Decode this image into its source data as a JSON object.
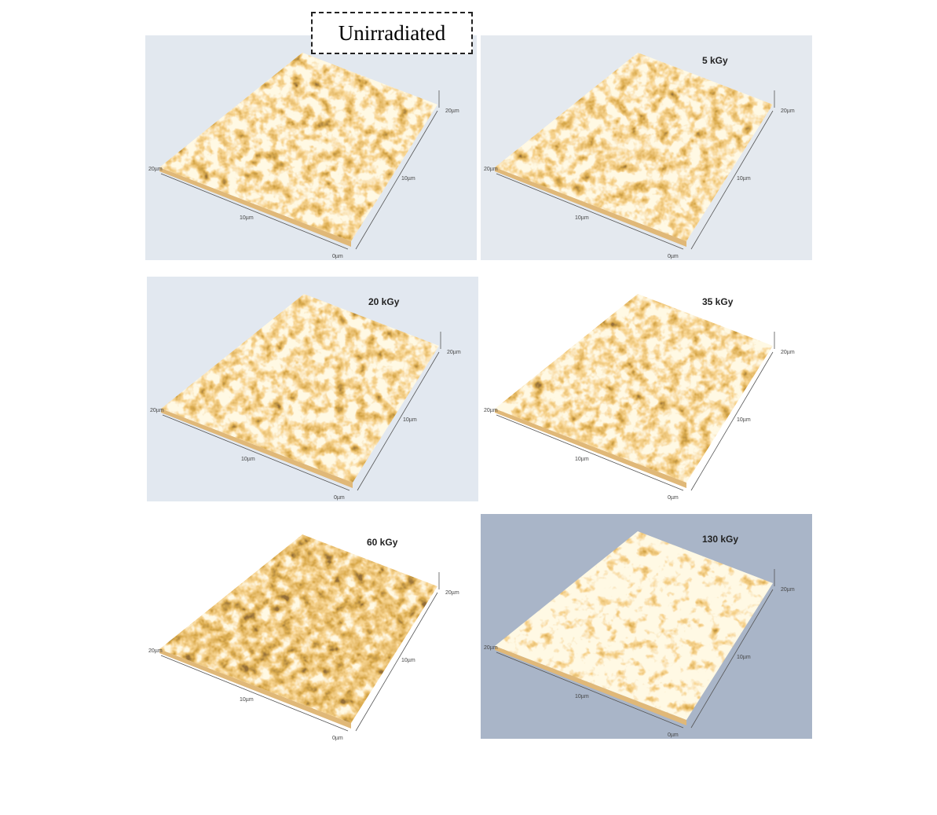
{
  "figure": {
    "title": "Unirradiated",
    "panels": [
      {
        "label": "5 kGy",
        "axis_labels": [
          "20µm",
          "10µm",
          "0µm",
          "10µm",
          "20µm"
        ]
      },
      {
        "label": "20 kGy",
        "axis_labels": [
          "20µm",
          "10µm",
          "0µm",
          "10µm",
          "20µm"
        ]
      },
      {
        "label": "35 kGy",
        "axis_labels": [
          "20µm",
          "10µm",
          "0µm",
          "10µm",
          "20µm"
        ]
      },
      {
        "label": "60 kGy",
        "axis_labels": [
          "20µm",
          "10µm",
          "0µm",
          "10µm",
          "20µm"
        ]
      },
      {
        "label": "130 kGy",
        "axis_labels": [
          "20µm",
          "10µm",
          "0µm",
          "10µm",
          "20µm"
        ]
      }
    ],
    "first_panel_axis_labels": [
      "20µm",
      "10µm",
      "0µm",
      "10µm",
      "20µm"
    ]
  }
}
